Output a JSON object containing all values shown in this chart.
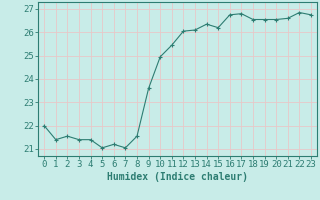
{
  "x": [
    0,
    1,
    2,
    3,
    4,
    5,
    6,
    7,
    8,
    9,
    10,
    11,
    12,
    13,
    14,
    15,
    16,
    17,
    18,
    19,
    20,
    21,
    22,
    23
  ],
  "y": [
    22.0,
    21.4,
    21.55,
    21.4,
    21.4,
    21.05,
    21.2,
    21.05,
    21.55,
    23.6,
    24.95,
    25.45,
    26.05,
    26.1,
    26.35,
    26.2,
    26.75,
    26.8,
    26.55,
    26.55,
    26.55,
    26.6,
    26.85,
    26.75
  ],
  "line_color": "#2d7d72",
  "marker": "+",
  "marker_size": 4,
  "bg_color": "#c8ece8",
  "grid_color": "#e8c8c8",
  "tick_color": "#2d7d72",
  "xlabel": "Humidex (Indice chaleur)",
  "ylabel_ticks": [
    21,
    22,
    23,
    24,
    25,
    26,
    27
  ],
  "ylim": [
    20.7,
    27.3
  ],
  "xlim": [
    -0.5,
    23.5
  ],
  "xlabel_fontsize": 7,
  "tick_fontsize": 6.5
}
